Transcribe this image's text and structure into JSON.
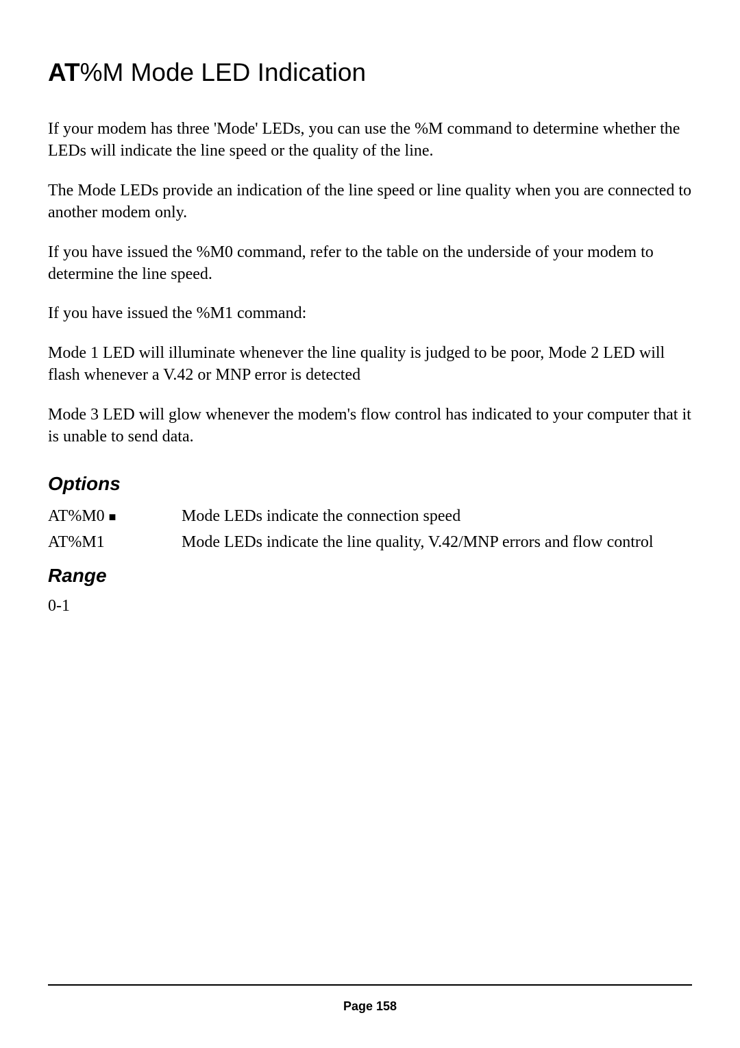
{
  "heading": {
    "bold_part": "AT",
    "rest": "%M Mode LED Indication"
  },
  "paragraphs": {
    "p1": "If your modem has three 'Mode' LEDs, you can use the %M command to determine whether the LEDs will indicate the line speed or the quality of the line.",
    "p2": "The Mode LEDs provide an indication of the line speed or line quality when you are connected to another modem only.",
    "p3": "If you have issued the %M0 command, refer to the table on the underside of your modem to determine the line speed.",
    "p4": "If you have issued the %M1 command:",
    "p5": "Mode 1 LED will illuminate whenever the line quality is judged to be poor, Mode 2 LED will flash whenever a V.42 or MNP error is detected",
    "p6": "Mode 3 LED will glow whenever the modem's flow control has indicated to your computer that it is unable to send data."
  },
  "options": {
    "heading": "Options",
    "rows": [
      {
        "cmd": "AT%M0",
        "marker": "■",
        "desc": "Mode LEDs indicate the connection speed"
      },
      {
        "cmd": "AT%M1",
        "marker": "",
        "desc": "Mode LEDs indicate the line quality, V.42/MNP errors and flow control"
      }
    ]
  },
  "range": {
    "heading": "Range",
    "value": "0-1"
  },
  "footer": {
    "page_label": "Page 158"
  },
  "styles": {
    "background_color": "#ffffff",
    "text_color": "#000000",
    "heading_fontsize": 37,
    "section_heading_fontsize": 28,
    "body_fontsize": 24,
    "page_number_fontsize": 18
  }
}
